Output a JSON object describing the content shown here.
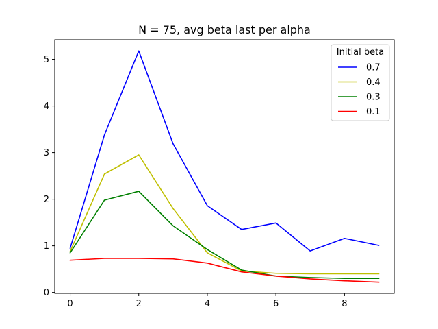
{
  "chart_data": {
    "type": "line",
    "title": "N = 75, avg beta last per alpha",
    "xlabel": "",
    "ylabel": "",
    "x": [
      0,
      1,
      2,
      3,
      4,
      5,
      6,
      7,
      8,
      9
    ],
    "xlim": [
      -0.45,
      9.45
    ],
    "ylim": [
      -0.02,
      5.42
    ],
    "xticks": [
      0,
      2,
      4,
      6,
      8
    ],
    "yticks": [
      0,
      1,
      2,
      3,
      4,
      5
    ],
    "grid": false,
    "legend": {
      "title": "Initial beta",
      "placement": "top-right"
    },
    "series": [
      {
        "name": "0.7",
        "color": "#0000ff",
        "values": [
          0.95,
          3.38,
          5.18,
          3.19,
          1.86,
          1.35,
          1.49,
          0.89,
          1.16,
          1.01
        ]
      },
      {
        "name": "0.4",
        "color": "#bfbf00",
        "values": [
          0.88,
          2.54,
          2.95,
          1.8,
          0.85,
          0.46,
          0.41,
          0.4,
          0.4,
          0.4
        ]
      },
      {
        "name": "0.3",
        "color": "#008000",
        "values": [
          0.85,
          1.98,
          2.17,
          1.43,
          0.92,
          0.48,
          0.35,
          0.32,
          0.3,
          0.3
        ]
      },
      {
        "name": "0.1",
        "color": "#ff0000",
        "values": [
          0.69,
          0.73,
          0.73,
          0.72,
          0.63,
          0.44,
          0.35,
          0.29,
          0.25,
          0.22
        ]
      }
    ]
  }
}
